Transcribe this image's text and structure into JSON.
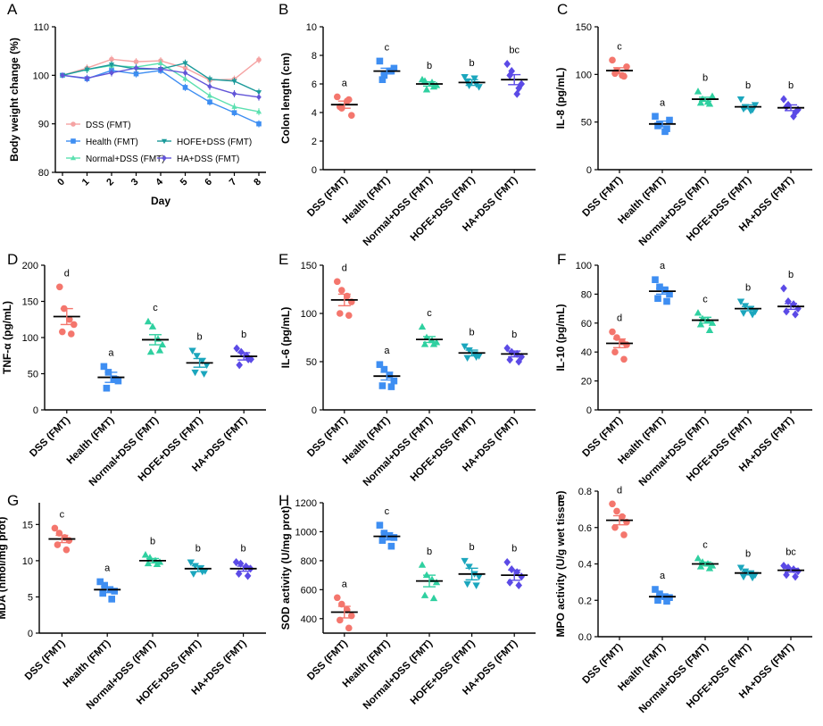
{
  "colors": {
    "DSS (FMT)": "#f4766d",
    "Health (FMT)": "#3e8ef2",
    "Normal+DSS (FMT)": "#2fd0a0",
    "HOFE+DSS (FMT)": "#1ba6bd",
    "HA+DSS (FMT)": "#5b4ae6",
    "DSS_line": "#f5a3a3",
    "Health_line": "#3e8ef2",
    "Normal_line": "#5ce0b0",
    "HOFE_line": "#1b9a9a",
    "HA_line": "#6255d8"
  },
  "chart_data": [
    {
      "panel": "A",
      "type": "line",
      "ylabel": "Body weight change (%)",
      "xlabel": "Day",
      "x": [
        0,
        1,
        2,
        3,
        4,
        5,
        6,
        7,
        8
      ],
      "ylim": [
        80,
        110
      ],
      "yticks": [
        80,
        90,
        100,
        110
      ],
      "legend": "bottom-left",
      "series": [
        {
          "name": "DSS (FMT)",
          "marker": "circle",
          "values": [
            100,
            101.5,
            103.3,
            102.8,
            103,
            101.5,
            99,
            99.2,
            103.2
          ]
        },
        {
          "name": "Health (FMT)",
          "marker": "square",
          "values": [
            100,
            99.3,
            101,
            100.3,
            101,
            97.5,
            94.5,
            92.3,
            90
          ]
        },
        {
          "name": "Normal+DSS (FMT)",
          "marker": "triangle-up",
          "values": [
            100,
            101.2,
            102,
            101.7,
            102.5,
            99.3,
            95.8,
            93.5,
            92.5
          ]
        },
        {
          "name": "HOFE+DSS (FMT)",
          "marker": "triangle-down",
          "values": [
            100,
            101.2,
            102.2,
            101.3,
            101.3,
            102.5,
            99.2,
            98.8,
            96.5
          ]
        },
        {
          "name": "HA+DSS (FMT)",
          "marker": "diamond",
          "values": [
            100,
            99.4,
            100.5,
            101.5,
            101.3,
            100.5,
            97.7,
            96.2,
            95.5
          ]
        }
      ]
    },
    {
      "panel": "B",
      "type": "scatter",
      "ylabel": "Colon length (cm)",
      "ylim": [
        0,
        10
      ],
      "yticks": [
        0,
        2,
        4,
        6,
        8,
        10
      ],
      "categories": [
        "DSS (FMT)",
        "Health (FMT)",
        "Normal+DSS (FMT)",
        "HOFE+DSS (FMT)",
        "HA+DSS (FMT)"
      ],
      "letters": [
        "a",
        "c",
        "b",
        "b",
        "bc"
      ],
      "means": [
        4.55,
        6.9,
        6.0,
        6.1,
        6.3
      ],
      "sem": [
        0.25,
        0.2,
        0.15,
        0.2,
        0.35
      ],
      "points": [
        [
          5.1,
          4.3,
          4.8,
          3.8,
          4.4,
          4.9
        ],
        [
          7.6,
          6.6,
          6.9,
          7.1,
          6.3,
          6.9
        ],
        [
          6.3,
          5.6,
          6.1,
          5.9,
          6.2,
          5.8
        ],
        [
          6.5,
          5.9,
          6.4,
          5.8,
          6.2,
          6.0
        ],
        [
          7.4,
          6.9,
          5.3,
          6.0,
          6.6,
          5.7
        ]
      ]
    },
    {
      "panel": "C",
      "type": "scatter",
      "ylabel": "IL-8 (pg/mL)",
      "ylim": [
        0,
        150
      ],
      "yticks": [
        0,
        50,
        100,
        150
      ],
      "categories": [
        "DSS (FMT)",
        "Health (FMT)",
        "Normal+DSS (FMT)",
        "HOFE+DSS (FMT)",
        "HA+DSS (FMT)"
      ],
      "letters": [
        "c",
        "a",
        "b",
        "b",
        "b"
      ],
      "means": [
        104,
        48,
        74,
        66,
        65
      ],
      "sem": [
        3,
        3,
        2,
        2,
        3
      ],
      "points": [
        [
          115,
          104,
          99,
          108,
          101,
          98
        ],
        [
          56,
          48,
          40,
          52,
          46,
          43
        ],
        [
          82,
          74,
          71,
          77,
          70,
          69
        ],
        [
          74,
          66,
          62,
          68,
          64,
          63
        ],
        [
          74,
          68,
          56,
          63,
          66,
          60
        ]
      ]
    },
    {
      "panel": "D",
      "type": "scatter",
      "ylabel": "TNF-α (pg/mL)",
      "ylim": [
        0,
        200
      ],
      "yticks": [
        0,
        50,
        100,
        150,
        200
      ],
      "categories": [
        "DSS (FMT)",
        "Health (FMT)",
        "Normal+DSS (FMT)",
        "HOFE+DSS (FMT)",
        "HA+DSS (FMT)"
      ],
      "letters": [
        "d",
        "a",
        "c",
        "b",
        "b"
      ],
      "means": [
        129,
        45,
        97,
        65,
        74
      ],
      "sem": [
        11,
        7,
        7,
        6,
        5
      ],
      "points": [
        [
          170,
          140,
          125,
          118,
          108,
          105
        ],
        [
          60,
          52,
          43,
          40,
          30,
          42
        ],
        [
          122,
          115,
          98,
          90,
          80,
          82
        ],
        [
          82,
          75,
          68,
          62,
          52,
          50
        ],
        [
          85,
          80,
          75,
          70,
          62,
          70
        ]
      ]
    },
    {
      "panel": "E",
      "type": "scatter",
      "ylabel": "IL-6 (pg/mL)",
      "ylim": [
        0,
        150
      ],
      "yticks": [
        0,
        50,
        100,
        150
      ],
      "categories": [
        "DSS (FMT)",
        "Health (FMT)",
        "Normal+DSS (FMT)",
        "HOFE+DSS (FMT)",
        "HA+DSS (FMT)"
      ],
      "letters": [
        "d",
        "a",
        "c",
        "b",
        "b"
      ],
      "means": [
        114,
        35,
        73,
        59,
        58
      ],
      "sem": [
        6,
        4,
        3,
        3,
        3
      ],
      "points": [
        [
          133,
          124,
          118,
          112,
          100,
          98
        ],
        [
          47,
          42,
          36,
          30,
          25,
          24
        ],
        [
          86,
          75,
          72,
          70,
          68,
          68
        ],
        [
          66,
          62,
          58,
          56,
          54,
          55
        ],
        [
          64,
          60,
          58,
          55,
          52,
          50
        ]
      ]
    },
    {
      "panel": "F",
      "type": "scatter",
      "ylabel": "IL-10 (pg/mL)",
      "ylim": [
        0,
        100
      ],
      "yticks": [
        0,
        20,
        40,
        60,
        80,
        100
      ],
      "categories": [
        "DSS (FMT)",
        "Health (FMT)",
        "Normal+DSS (FMT)",
        "HOFE+DSS (FMT)",
        "HA+DSS (FMT)"
      ],
      "letters": [
        "d",
        "a",
        "c",
        "b",
        "b"
      ],
      "means": [
        46,
        82,
        62,
        70,
        71.5
      ],
      "sem": [
        3,
        2,
        2,
        1.5,
        2
      ],
      "points": [
        [
          54,
          50,
          47,
          45,
          40,
          35
        ],
        [
          90,
          85,
          83,
          80,
          77,
          75
        ],
        [
          67,
          63,
          62,
          60,
          59,
          55
        ],
        [
          75,
          72,
          70,
          68,
          67,
          66
        ],
        [
          84,
          75,
          73,
          70,
          68,
          66
        ]
      ]
    },
    {
      "panel": "G",
      "type": "scatter",
      "ylabel": "MDA (nmol/mg prot)",
      "ylim": [
        0,
        18
      ],
      "yticks": [
        0,
        5,
        10,
        15
      ],
      "categories": [
        "DSS (FMT)",
        "Health (FMT)",
        "Normal+DSS (FMT)",
        "HOFE+DSS (FMT)",
        "HA+DSS (FMT)"
      ],
      "letters": [
        "c",
        "a",
        "b",
        "b",
        "b"
      ],
      "means": [
        13,
        6,
        10,
        8.9,
        8.9
      ],
      "sem": [
        0.5,
        0.4,
        0.3,
        0.4,
        0.35
      ],
      "points": [
        [
          14.5,
          13.8,
          13.2,
          12.8,
          12.2,
          11.5
        ],
        [
          7.1,
          6.6,
          6.0,
          5.8,
          5.5,
          4.7
        ],
        [
          10.8,
          10.4,
          10.0,
          9.8,
          9.6,
          9.5
        ],
        [
          9.8,
          9.3,
          9.0,
          8.6,
          8.2,
          8.5
        ],
        [
          9.8,
          9.6,
          9.2,
          8.9,
          8.2,
          7.9
        ]
      ]
    },
    {
      "panel": "H",
      "type": "scatter",
      "ylabel": "SOD activity (U/mg prot)",
      "ylim": [
        300,
        1200
      ],
      "yticks": [
        400,
        600,
        800,
        1000,
        1200
      ],
      "categories": [
        "DSS (FMT)",
        "Health (FMT)",
        "Normal+DSS (FMT)",
        "HOFE+DSS (FMT)",
        "HA+DSS (FMT)"
      ],
      "letters": [
        "a",
        "c",
        "b",
        "b",
        "b"
      ],
      "means": [
        445,
        968,
        660,
        708,
        700
      ],
      "sem": [
        40,
        25,
        40,
        40,
        35
      ],
      "points": [
        [
          545,
          500,
          460,
          420,
          390,
          335
        ],
        [
          1045,
          990,
          970,
          960,
          940,
          900
        ],
        [
          770,
          700,
          670,
          650,
          560,
          540
        ],
        [
          800,
          760,
          710,
          690,
          640,
          630
        ],
        [
          790,
          740,
          720,
          690,
          650,
          630
        ]
      ]
    },
    {
      "panel": "I",
      "type": "scatter",
      "ylabel": "MPO activity (U/g wet tissue)",
      "ylim": [
        0,
        0.8
      ],
      "yticks": [
        0.0,
        0.2,
        0.4,
        0.6,
        0.8
      ],
      "categories": [
        "DSS (FMT)",
        "Health (FMT)",
        "Normal+DSS (FMT)",
        "HOFE+DSS (FMT)",
        "HA+DSS (FMT)"
      ],
      "letters": [
        "d",
        "a",
        "c",
        "b",
        "bc"
      ],
      "means": [
        0.64,
        0.22,
        0.4,
        0.35,
        0.365
      ],
      "sem": [
        0.025,
        0.01,
        0.01,
        0.01,
        0.01
      ],
      "points": [
        [
          0.73,
          0.69,
          0.66,
          0.63,
          0.6,
          0.56
        ],
        [
          0.26,
          0.235,
          0.22,
          0.215,
          0.2,
          0.195
        ],
        [
          0.43,
          0.41,
          0.4,
          0.39,
          0.385,
          0.375
        ],
        [
          0.38,
          0.36,
          0.35,
          0.34,
          0.33,
          0.325
        ],
        [
          0.39,
          0.38,
          0.37,
          0.36,
          0.34,
          0.33
        ]
      ]
    }
  ]
}
